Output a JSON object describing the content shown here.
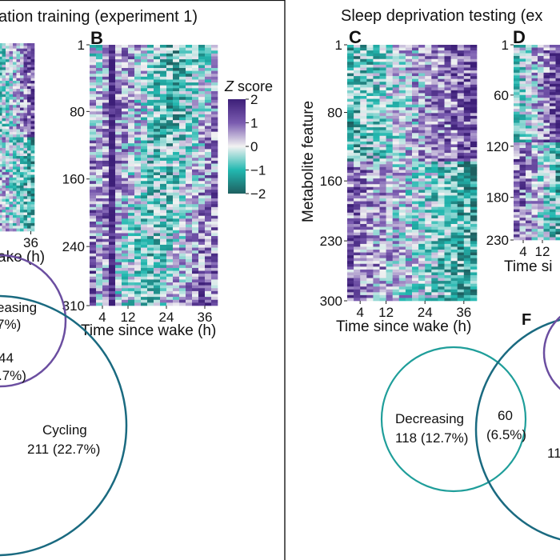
{
  "panels": {
    "left_title": "ation training (experiment 1)",
    "right_title": "Sleep deprivation testing (ex",
    "labels": {
      "B": "B",
      "C": "C",
      "D": "D",
      "F": "F"
    }
  },
  "colorbar": {
    "title_italic": "Z",
    "title_rest": " score",
    "ticks": [
      "2",
      "1",
      "0",
      "−1",
      "−2"
    ],
    "colors": [
      "#3d1f78",
      "#7a5bb0",
      "#f2f2f2",
      "#22b8b0",
      "#1e5f60"
    ]
  },
  "colors": {
    "purple": "#6b4ea0",
    "teal": "#1f9e9a",
    "dark_teal": "#1a6a80"
  },
  "chart_data": [
    {
      "type": "heatmap",
      "panel": "A",
      "xlabel": "ake (h)",
      "x_ticks": [
        "36"
      ]
    },
    {
      "type": "heatmap",
      "panel": "B",
      "xlabel": "Time since wake (h)",
      "x_ticks": [
        "4",
        "12",
        "24",
        "36"
      ],
      "y_ticks": [
        "1",
        "80",
        "160",
        "240",
        "310"
      ],
      "ylim": [
        1,
        310
      ]
    },
    {
      "type": "heatmap",
      "panel": "C",
      "xlabel": "Time since wake (h)",
      "ylabel": "Metabolite feature",
      "x_ticks": [
        "4",
        "12",
        "24",
        "36"
      ],
      "y_ticks": [
        "1",
        "80",
        "160",
        "230",
        "300"
      ],
      "ylim": [
        1,
        300
      ]
    },
    {
      "type": "heatmap",
      "panel": "D",
      "xlabel": "Time si",
      "x_ticks": [
        "4",
        "12"
      ],
      "y_ticks": [
        "1",
        "60",
        "120",
        "180",
        "230"
      ],
      "ylim": [
        1,
        230
      ]
    }
  ],
  "venn_left": {
    "top_label": "easing",
    "top_pct": "7%)",
    "overlap_count": "44",
    "overlap_pct": ".7%)",
    "cycling_label": "Cycling",
    "cycling_value": "211 (22.7%)"
  },
  "venn_right": {
    "decreasing_label": "Decreasing",
    "decreasing_value": "118 (12.7%)",
    "overlap_count": "60",
    "overlap_pct": "(6.5%)",
    "right_partial": "11"
  }
}
